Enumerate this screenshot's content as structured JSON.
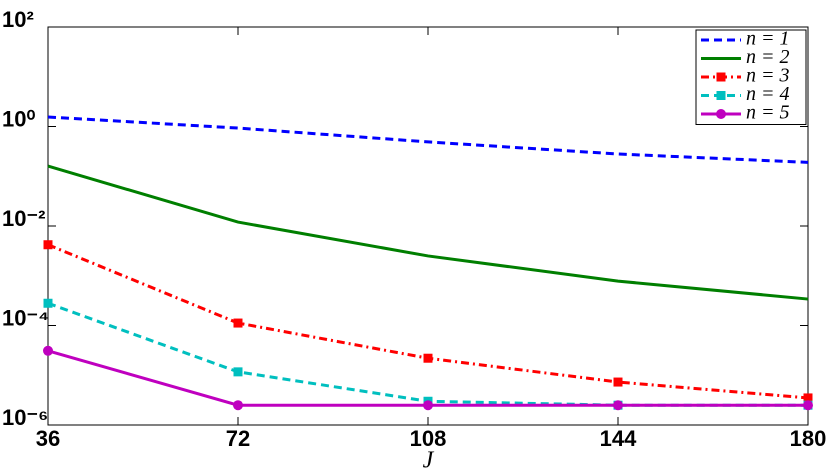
{
  "chart_data": {
    "type": "line",
    "xlabel": "J",
    "yscale": "log",
    "grid": false,
    "legend": "upper right",
    "x": [
      36,
      72,
      108,
      144,
      180
    ],
    "xlim": [
      36,
      180
    ],
    "xticks": [
      36,
      72,
      108,
      144,
      180
    ],
    "ylim": [
      1e-06,
      100
    ],
    "yticks": [
      {
        "value": 100,
        "label": "10²"
      },
      {
        "value": 1,
        "label": "10⁰"
      },
      {
        "value": 0.01,
        "label": "10⁻²"
      },
      {
        "value": 0.0001,
        "label": "10⁻⁴"
      },
      {
        "value": 1e-06,
        "label": "10⁻⁶"
      }
    ],
    "series": [
      {
        "name": "n = 1",
        "color": "#0000ff",
        "dash": "dashed",
        "marker": "none",
        "values": [
          1.55,
          0.93,
          0.49,
          0.28,
          0.19
        ]
      },
      {
        "name": "n = 2",
        "color": "#007f00",
        "dash": "solid",
        "marker": "none",
        "values": [
          0.16,
          0.012,
          0.0025,
          0.00078,
          0.00034
        ]
      },
      {
        "name": "n = 3",
        "color": "#ff0000",
        "dash": "dashdot",
        "marker": "square",
        "values": [
          0.0042,
          0.000112,
          2.2e-05,
          7.3e-06,
          3.5e-06
        ]
      },
      {
        "name": "n = 4",
        "color": "#00bfbf",
        "dash": "dashed",
        "marker": "square",
        "values": [
          0.00028,
          1.17e-05,
          3e-06,
          2.5e-06,
          2.5e-06
        ]
      },
      {
        "name": "n = 5",
        "color": "#bf00bf",
        "dash": "solid",
        "marker": "circle",
        "values": [
          3.1e-05,
          2.5e-06,
          2.5e-06,
          2.5e-06,
          2.5e-06
        ]
      }
    ]
  }
}
